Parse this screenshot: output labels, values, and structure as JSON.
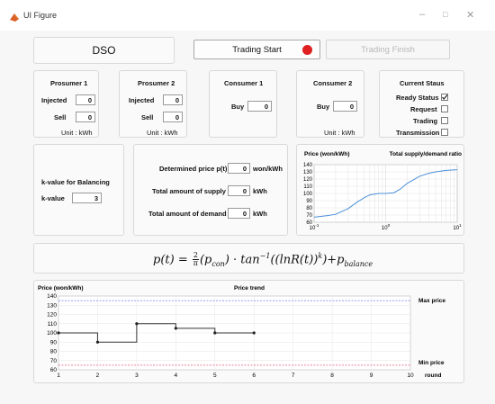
{
  "window": {
    "title": "UI Figure",
    "minimize": "–",
    "maximize": "□",
    "close": "✕"
  },
  "toolbar": {
    "dso_label": "DSO",
    "trading_start_label": "Trading Start",
    "trading_finish_label": "Trading Finish",
    "status_lamp_color": "#e02020"
  },
  "prosumer1": {
    "title": "Prosumer 1",
    "injected_label": "Injected",
    "injected_value": "0",
    "sell_label": "Sell",
    "sell_value": "0",
    "unit": "Unit : kWh"
  },
  "prosumer2": {
    "title": "Prosumer 2",
    "injected_label": "Injected",
    "injected_value": "0",
    "sell_label": "Sell",
    "sell_value": "0",
    "unit": "Unit : kWh"
  },
  "consumer1": {
    "title": "Consumer 1",
    "buy_label": "Buy",
    "buy_value": "0"
  },
  "consumer2": {
    "title": "Consumer 2",
    "buy_label": "Buy",
    "buy_value": "0",
    "unit": "Unit : kWh"
  },
  "status": {
    "title": "Current Staus",
    "items": [
      {
        "label": "Ready Status",
        "checked": true
      },
      {
        "label": "Request",
        "checked": false
      },
      {
        "label": "Trading",
        "checked": false
      },
      {
        "label": "Transmission",
        "checked": false
      }
    ]
  },
  "balancing": {
    "title": "k-value for Balancing",
    "k_label": "k-value",
    "k_value": "3"
  },
  "results": {
    "price_label": "Determined price p(t)",
    "price_value": "0",
    "price_unit": "won/kWh",
    "supply_label": "Total amount of supply",
    "supply_value": "0",
    "supply_unit": "kWh",
    "demand_label": "Total amount of demand",
    "demand_value": "0",
    "demand_unit": "kWh"
  },
  "formula": {
    "lhs": "p(t) = ",
    "frac_num": "2",
    "frac_den": "π",
    "body": "(p",
    "sub_con": "con",
    "rest": ") · tan",
    "sup": "−1",
    "rest2": "((lnR(t))",
    "sup_k": "k",
    "rest3": ")+p",
    "sub_bal": "balance"
  },
  "chart_data": [
    {
      "type": "line",
      "title": "Total supply/demand ratio",
      "ylabel": "Price (won/kWh)",
      "xscale": "log",
      "xlim": [
        0.1,
        10
      ],
      "ylim": [
        60,
        140
      ],
      "xtick_labels": [
        "10",
        "10",
        "10"
      ],
      "xtick_exponents": [
        "-1",
        "0",
        "1"
      ],
      "yticks": [
        60,
        70,
        80,
        90,
        100,
        110,
        120,
        130,
        140
      ],
      "grid": true,
      "series": [
        {
          "color": "#4a90d9",
          "x": [
            0.1,
            0.15,
            0.2,
            0.3,
            0.4,
            0.5,
            0.6,
            0.8,
            1.0,
            1.3,
            1.6,
            2.0,
            3.0,
            4.0,
            5.0,
            7.0,
            10.0
          ],
          "y": [
            67,
            69,
            71,
            79,
            88,
            94,
            98,
            100,
            100,
            101,
            106,
            114,
            124,
            128,
            130,
            132,
            133
          ]
        }
      ]
    },
    {
      "type": "line",
      "title": "Price trend",
      "ylabel": "Price (won/kWh)",
      "xlabel": "round",
      "xlim": [
        1,
        10
      ],
      "ylim": [
        60,
        140
      ],
      "xticks": [
        1,
        2,
        3,
        4,
        5,
        6,
        7,
        8,
        9,
        10
      ],
      "yticks": [
        60,
        70,
        80,
        90,
        100,
        110,
        120,
        130,
        140
      ],
      "grid": true,
      "max_price": 135,
      "min_price": 65,
      "max_label": "Max price",
      "min_label": "Min price",
      "series": [
        {
          "color": "#333333",
          "step": true,
          "x": [
            1,
            2,
            3,
            4,
            5,
            6
          ],
          "y": [
            100,
            90,
            110,
            105,
            100,
            100
          ]
        }
      ]
    }
  ]
}
